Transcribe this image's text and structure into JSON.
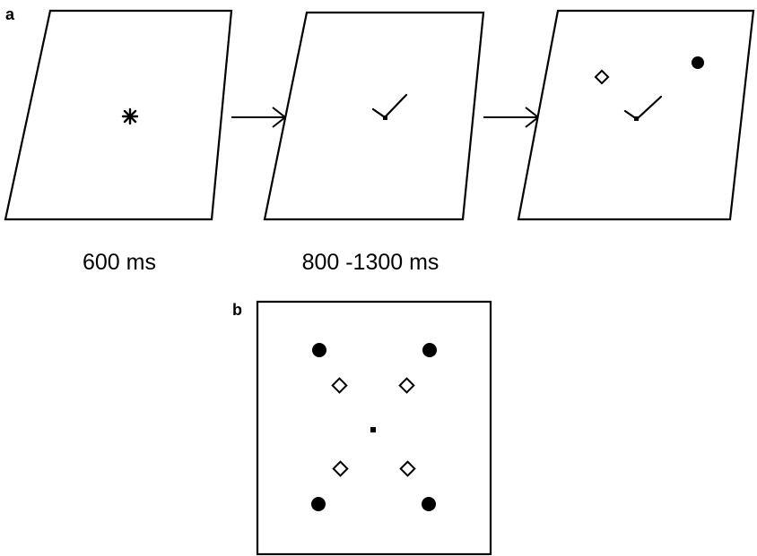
{
  "panel_a": {
    "letter": "a",
    "durations": [
      "600 ms",
      "800 -1300 ms"
    ],
    "screens": [
      {
        "content": "fixation asterisk"
      },
      {
        "content": "gaze cue"
      },
      {
        "content": "gaze cue with diamond and filled dot"
      }
    ]
  },
  "panel_b": {
    "letter": "b",
    "content": "fixation point with four filled dots and four diamonds"
  }
}
